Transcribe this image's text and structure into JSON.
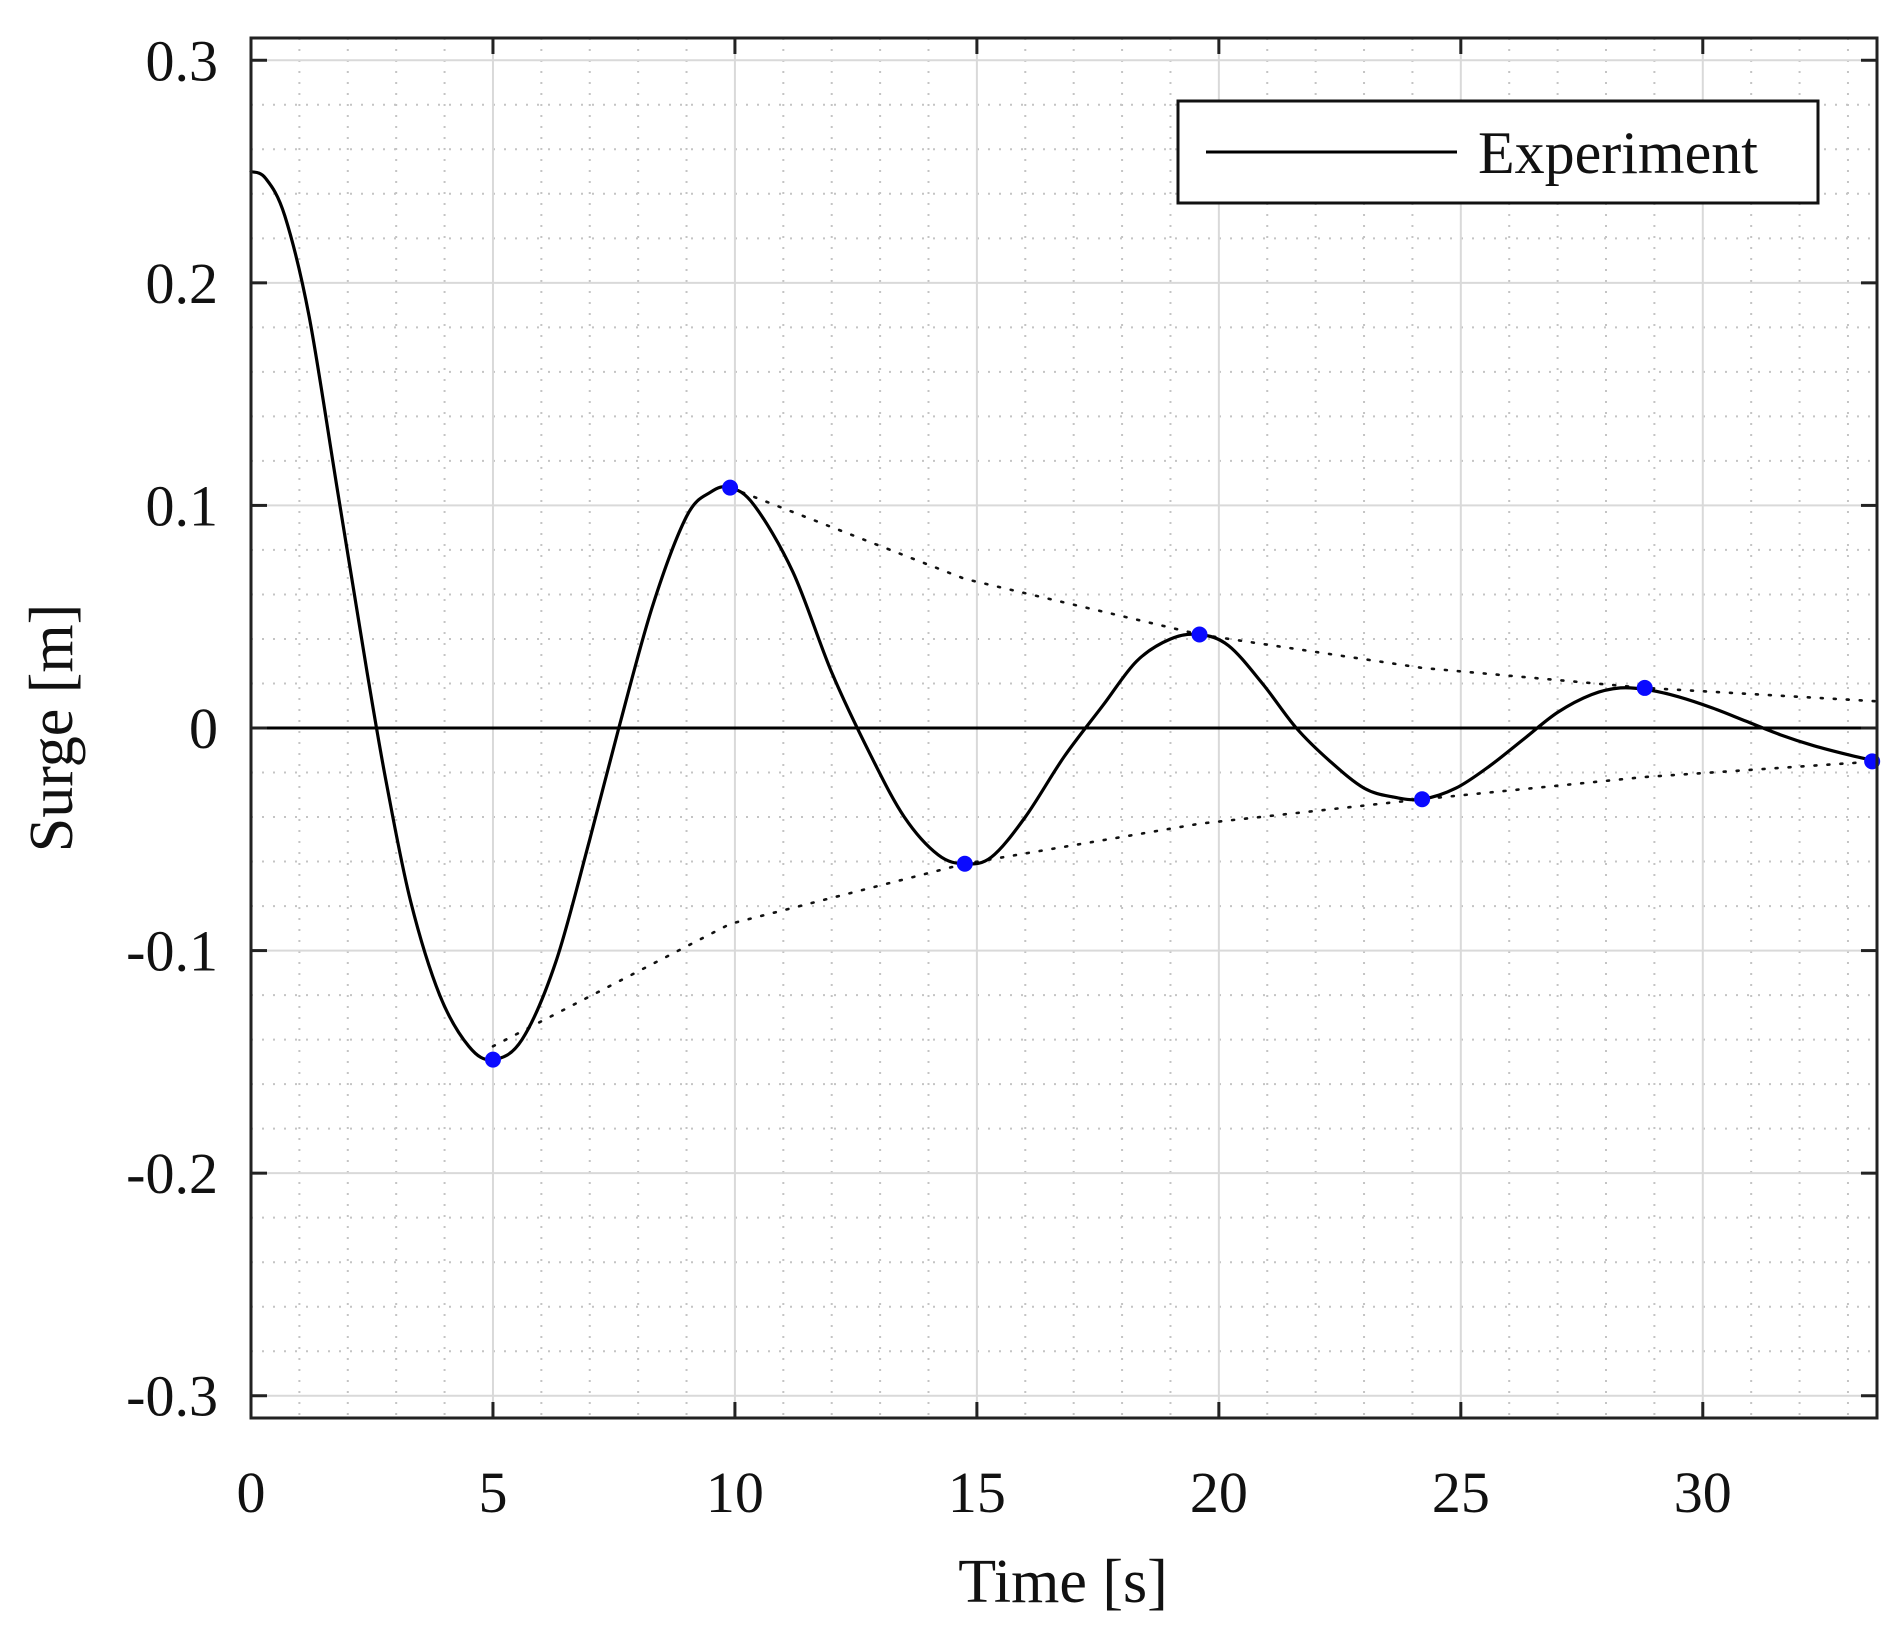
{
  "chart_data": {
    "type": "line",
    "title": "",
    "xlabel": "Time [s]",
    "ylabel": "Surge [m]",
    "xlim": [
      0,
      33.6
    ],
    "ylim": [
      -0.31,
      0.31
    ],
    "xticks": [
      0,
      5,
      10,
      15,
      20,
      25,
      30
    ],
    "xtick_labels": [
      "0",
      "5",
      "10",
      "15",
      "20",
      "25",
      "30"
    ],
    "yticks": [
      -0.3,
      -0.2,
      -0.1,
      0,
      0.1,
      0.2,
      0.3
    ],
    "ytick_labels": [
      "-0.3",
      "-0.2",
      "-0.1",
      "0",
      "0.1",
      "0.2",
      "0.3"
    ],
    "grid": true,
    "minor_grid": true,
    "legend": {
      "position": "top-right",
      "entries": [
        "Experiment"
      ]
    },
    "series": [
      {
        "name": "Experiment",
        "color": "#000000",
        "x": [
          0,
          0.3,
          0.7,
          1.2,
          1.8,
          2.4,
          2.8,
          3.3,
          3.9,
          4.5,
          5.0,
          5.6,
          6.3,
          7.0,
          7.6,
          8.3,
          9.0,
          9.5,
          9.9,
          10.4,
          11.2,
          12.0,
          12.8,
          13.5,
          14.2,
          14.75,
          15.3,
          16.0,
          16.8,
          17.6,
          18.3,
          19.0,
          19.6,
          20.2,
          20.9,
          21.6,
          22.3,
          23.0,
          23.6,
          24.2,
          24.9,
          25.6,
          26.3,
          27.0,
          27.7,
          28.3,
          28.9,
          29.5,
          30.2,
          30.9,
          31.6,
          32.3,
          33.0,
          33.6
        ],
        "y": [
          0.25,
          0.247,
          0.23,
          0.185,
          0.105,
          0.025,
          -0.025,
          -0.078,
          -0.12,
          -0.143,
          -0.149,
          -0.14,
          -0.105,
          -0.05,
          0.0,
          0.055,
          0.095,
          0.106,
          0.108,
          0.1,
          0.07,
          0.025,
          -0.012,
          -0.04,
          -0.057,
          -0.061,
          -0.058,
          -0.04,
          -0.013,
          0.01,
          0.03,
          0.04,
          0.042,
          0.037,
          0.02,
          0.0,
          -0.015,
          -0.027,
          -0.031,
          -0.032,
          -0.027,
          -0.017,
          -0.005,
          0.007,
          0.015,
          0.018,
          0.017,
          0.014,
          0.009,
          0.003,
          -0.003,
          -0.008,
          -0.012,
          -0.015
        ]
      }
    ],
    "markers": {
      "color": "#0a0aff",
      "points": [
        {
          "x": 5.0,
          "y": -0.149
        },
        {
          "x": 9.9,
          "y": 0.108
        },
        {
          "x": 14.75,
          "y": -0.061
        },
        {
          "x": 19.6,
          "y": 0.042
        },
        {
          "x": 24.2,
          "y": -0.032
        },
        {
          "x": 28.8,
          "y": 0.018
        },
        {
          "x": 33.5,
          "y": -0.015
        }
      ]
    },
    "envelopes": [
      {
        "name": "upper-envelope",
        "x": [
          9.9,
          14.75,
          19.6,
          24.2,
          28.8,
          33.6
        ],
        "y": [
          0.108,
          0.067,
          0.042,
          0.027,
          0.018,
          0.012
        ]
      },
      {
        "name": "lower-envelope",
        "x": [
          5.0,
          9.9,
          14.75,
          19.6,
          24.2,
          28.8,
          33.6
        ],
        "y": [
          -0.143,
          -0.088,
          -0.061,
          -0.043,
          -0.032,
          -0.022,
          -0.015
        ]
      }
    ]
  }
}
